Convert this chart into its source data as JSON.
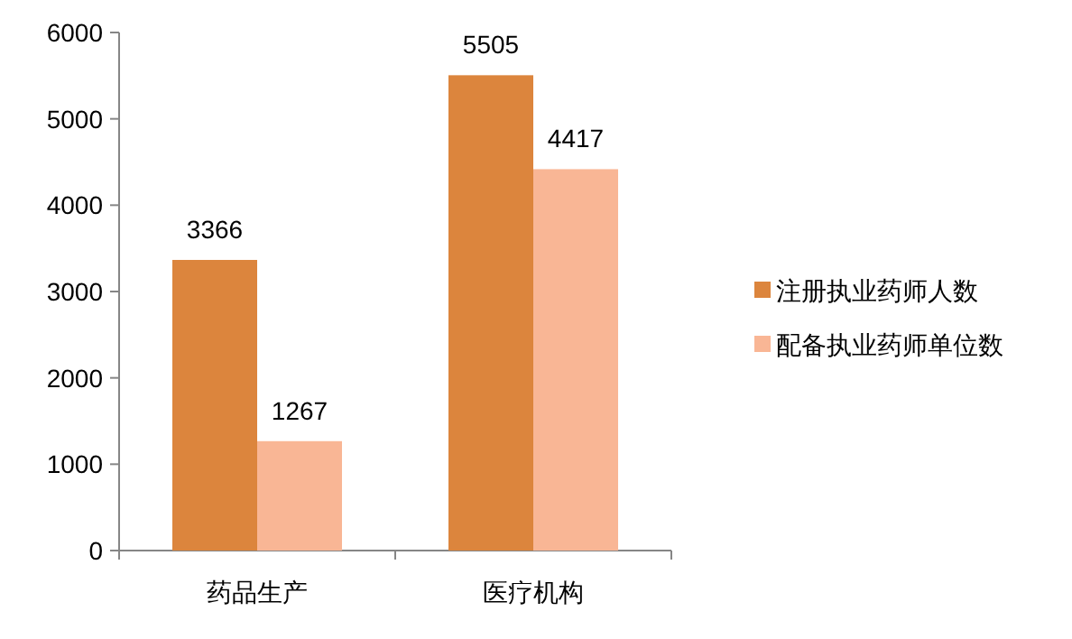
{
  "chart_data": {
    "type": "bar",
    "categories": [
      "药品生产",
      "医疗机构"
    ],
    "series": [
      {
        "name": "注册执业药师人数",
        "color": "#dc853d",
        "values": [
          3366,
          5505
        ]
      },
      {
        "name": "配备执业药师单位数",
        "color": "#f9b695",
        "values": [
          1267,
          4417
        ]
      }
    ],
    "ylim": [
      0,
      6000
    ],
    "yticks": [
      0,
      1000,
      2000,
      3000,
      4000,
      5000,
      6000
    ],
    "data_labels": true,
    "legend": "right",
    "grid": false
  }
}
